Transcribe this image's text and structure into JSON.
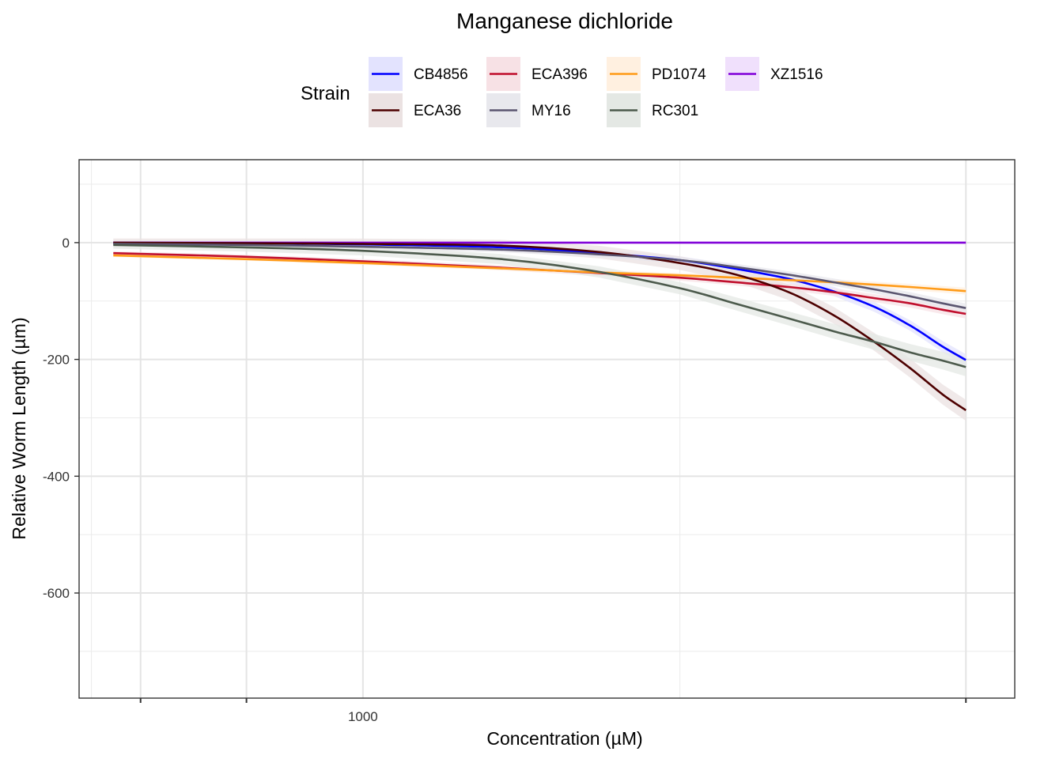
{
  "chart_data": {
    "type": "line",
    "title": "Manganese dichloride",
    "xlabel": "Concentration (µM)",
    "ylabel": "Relative Worm Length (µm)",
    "x_scale": "log10",
    "xlim": [
      434,
      6800
    ],
    "ylim": [
      -780,
      142
    ],
    "x_ticks": [
      {
        "value": 1000,
        "label": "1000"
      }
    ],
    "x_tick_marks": [
      520,
      710,
      5890
    ],
    "x_minor_grid": [
      520,
      710,
      1000,
      2540,
      5890
    ],
    "y_ticks": [
      {
        "value": 0,
        "label": "0"
      },
      {
        "value": -200,
        "label": "-200"
      },
      {
        "value": -400,
        "label": "-400"
      },
      {
        "value": -600,
        "label": "-600"
      }
    ],
    "y_minor_grid": [
      100,
      -100,
      -300,
      -500,
      -700
    ],
    "grid": true,
    "legend": {
      "title": "Strain",
      "position": "top",
      "entries": [
        {
          "name": "CB4856",
          "color": "#0000ff",
          "fill": "#e3e3fe"
        },
        {
          "name": "ECA396",
          "color": "#c00f2d",
          "fill": "#f7e1e5"
        },
        {
          "name": "PD1074",
          "color": "#ff9b18",
          "fill": "#fff0e0"
        },
        {
          "name": "XZ1516",
          "color": "#8000d8",
          "fill": "#f0e0fc"
        },
        {
          "name": "ECA36",
          "color": "#4d0000",
          "fill": "#ebe2e2"
        },
        {
          "name": "MY16",
          "color": "#5b5670",
          "fill": "#e8e8ed"
        },
        {
          "name": "RC301",
          "color": "#4c5a4c",
          "fill": "#e4e8e4"
        }
      ]
    },
    "x": [
      480,
      700,
      1000,
      1500,
      2000,
      2540,
      3000,
      3500,
      4000,
      4500,
      5000,
      5500,
      5890
    ],
    "series": [
      {
        "name": "CB4856",
        "values": [
          0,
          -1,
          -3,
          -8,
          -18,
          -30,
          -45,
          -62,
          -84,
          -110,
          -142,
          -178,
          -201
        ],
        "band": 10
      },
      {
        "name": "ECA396",
        "values": [
          -18,
          -24,
          -32,
          -43,
          -52,
          -60,
          -68,
          -76,
          -85,
          -95,
          -104,
          -115,
          -122
        ],
        "band": 8
      },
      {
        "name": "PD1074",
        "values": [
          -22,
          -28,
          -35,
          -44,
          -51,
          -56,
          -60,
          -64,
          -68,
          -72,
          -76,
          -80,
          -83
        ],
        "band": 6
      },
      {
        "name": "XZ1516",
        "values": [
          0,
          0,
          0,
          0,
          0,
          0,
          0,
          0,
          0,
          0,
          0,
          0,
          0
        ],
        "band": 2
      },
      {
        "name": "ECA36",
        "values": [
          0,
          -1,
          -2,
          -5,
          -16,
          -35,
          -55,
          -85,
          -125,
          -170,
          -215,
          -260,
          -287
        ],
        "band": 18
      },
      {
        "name": "MY16",
        "values": [
          -2,
          -4,
          -7,
          -12,
          -20,
          -30,
          -42,
          -55,
          -68,
          -80,
          -92,
          -104,
          -112
        ],
        "band": 8
      },
      {
        "name": "RC301",
        "values": [
          -4,
          -8,
          -14,
          -28,
          -50,
          -78,
          -105,
          -130,
          -152,
          -170,
          -188,
          -202,
          -213
        ],
        "band": 16
      }
    ]
  }
}
